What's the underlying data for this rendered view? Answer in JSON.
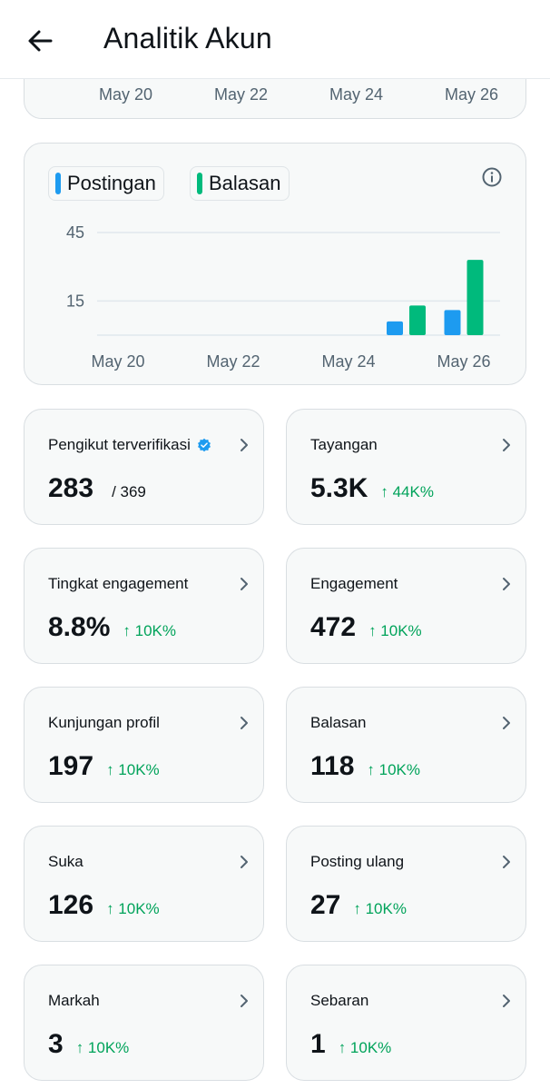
{
  "header": {
    "title": "Analitik Akun",
    "back_icon": "arrow-left-icon"
  },
  "top_chart": {
    "ticks": [
      "May 20",
      "May 22",
      "May 24",
      "May 26"
    ]
  },
  "colors": {
    "posts": "#1d9bf0",
    "replies": "#00ba7c",
    "positive": "#00a35a"
  },
  "chart_data": {
    "type": "bar",
    "categories": [
      "May 20",
      "May 21",
      "May 22",
      "May 23",
      "May 24",
      "May 25",
      "May 26"
    ],
    "x_tick_labels": [
      "May 20",
      "May 22",
      "May 24",
      "May 26"
    ],
    "y_tick_labels": [
      "45",
      "15"
    ],
    "ylim": [
      0,
      45
    ],
    "series": [
      {
        "name": "Postingan",
        "color": "#1d9bf0",
        "values": [
          0,
          0,
          0,
          0,
          0,
          6,
          11
        ]
      },
      {
        "name": "Balasan",
        "color": "#00ba7c",
        "values": [
          0,
          0,
          0,
          0,
          0,
          13,
          33
        ]
      }
    ],
    "grid": true,
    "legend": "top-left"
  },
  "stats": [
    {
      "label": "Pengikut terverifikasi",
      "value": "283",
      "sub": "/ 369",
      "verified": true
    },
    {
      "label": "Tayangan",
      "value": "5.3K",
      "change": "↑ 44K%"
    },
    {
      "label": "Tingkat engagement",
      "value": "8.8%",
      "change": "↑ 10K%"
    },
    {
      "label": "Engagement",
      "value": "472",
      "change": "↑ 10K%"
    },
    {
      "label": "Kunjungan profil",
      "value": "197",
      "change": "↑ 10K%"
    },
    {
      "label": "Balasan",
      "value": "118",
      "change": "↑ 10K%"
    },
    {
      "label": "Suka",
      "value": "126",
      "change": "↑ 10K%"
    },
    {
      "label": "Posting ulang",
      "value": "27",
      "change": "↑ 10K%"
    },
    {
      "label": "Markah",
      "value": "3",
      "change": "↑ 10K%"
    },
    {
      "label": "Sebaran",
      "value": "1",
      "change": "↑ 10K%"
    }
  ]
}
